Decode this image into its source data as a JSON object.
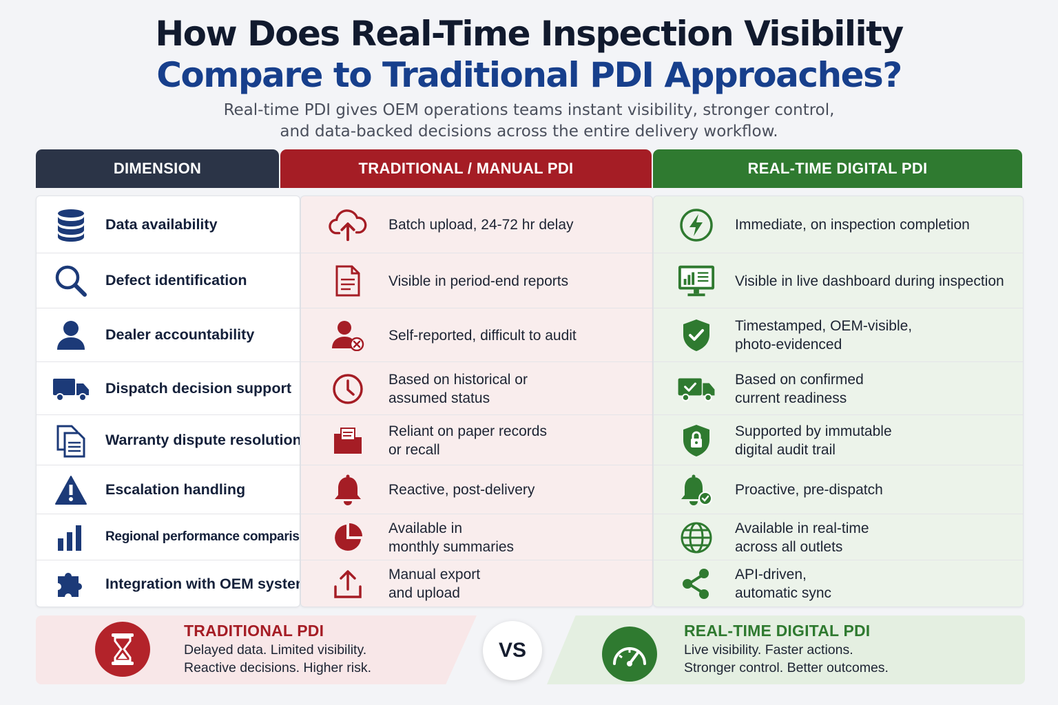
{
  "title": {
    "line1": "How Does Real-Time Inspection Visibility",
    "line2": "Compare to Traditional PDI Approaches?"
  },
  "subtitle": {
    "line1": "Real-time PDI gives OEM operations teams instant visibility, stronger control,",
    "line2": "and data-backed decisions across the entire delivery workflow."
  },
  "headers": {
    "dimension": "DIMENSION",
    "traditional": "TRADITIONAL / MANUAL PDI",
    "realtime": "REAL-TIME DIGITAL PDI"
  },
  "colors": {
    "navy": "#2b3447",
    "red": "#a51d25",
    "green": "#2f7a30",
    "dim_icon": "#1c3a78"
  },
  "rows": [
    {
      "dimension": "Data availability",
      "dim_icon": "database-icon",
      "traditional": [
        "Batch upload, 24-72 hr delay"
      ],
      "trad_icon": "cloud-upload-icon",
      "realtime": [
        "Immediate, on inspection completion"
      ],
      "real_icon": "lightning-icon"
    },
    {
      "dimension": "Defect identification",
      "dim_icon": "search-icon",
      "traditional": [
        "Visible in period-end reports"
      ],
      "trad_icon": "document-icon",
      "realtime": [
        "Visible in live dashboard during inspection"
      ],
      "real_icon": "dashboard-monitor-icon"
    },
    {
      "dimension": "Dealer accountability",
      "dim_icon": "user-icon",
      "traditional": [
        "Self-reported, difficult to audit"
      ],
      "trad_icon": "user-x-icon",
      "realtime": [
        "Timestamped, OEM-visible,",
        "photo-evidenced"
      ],
      "real_icon": "shield-check-icon"
    },
    {
      "dimension": "Dispatch decision support",
      "dim_icon": "truck-icon",
      "traditional": [
        "Based on historical or",
        "assumed status"
      ],
      "trad_icon": "clock-icon",
      "realtime": [
        "Based on confirmed",
        "current readiness"
      ],
      "real_icon": "truck-check-icon"
    },
    {
      "dimension": "Warranty dispute resolution",
      "dim_icon": "documents-icon",
      "traditional": [
        "Reliant on paper records",
        "or recall"
      ],
      "trad_icon": "folder-icon",
      "realtime": [
        "Supported by immutable",
        "digital audit trail"
      ],
      "real_icon": "shield-lock-icon"
    },
    {
      "dimension": "Escalation handling",
      "dim_icon": "warning-icon",
      "traditional": [
        "Reactive, post-delivery"
      ],
      "trad_icon": "bell-icon",
      "realtime": [
        "Proactive, pre-dispatch"
      ],
      "real_icon": "bell-check-icon"
    },
    {
      "dimension": "Regional performance comparison",
      "dim_icon": "bar-chart-icon",
      "traditional": [
        "Available in",
        "monthly summaries"
      ],
      "trad_icon": "pie-chart-icon",
      "realtime": [
        "Available in real-time",
        "across all outlets"
      ],
      "real_icon": "globe-icon"
    },
    {
      "dimension": "Integration with OEM systems",
      "dim_icon": "puzzle-icon",
      "traditional": [
        "Manual export",
        "and upload"
      ],
      "trad_icon": "upload-icon",
      "realtime": [
        "API-driven,",
        "automatic sync"
      ],
      "real_icon": "share-icon"
    }
  ],
  "footer": {
    "traditional": {
      "title": "TRADITIONAL PDI",
      "line1": "Delayed data. Limited visibility.",
      "line2": "Reactive decisions. Higher risk.",
      "icon": "hourglass-icon"
    },
    "vs": "VS",
    "realtime": {
      "title": "REAL-TIME DIGITAL PDI",
      "line1": "Live visibility. Faster actions.",
      "line2": "Stronger control. Better outcomes.",
      "icon": "speedometer-icon"
    }
  }
}
